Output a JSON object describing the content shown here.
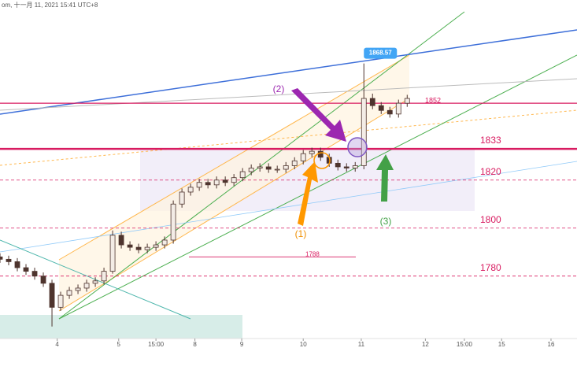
{
  "header": {
    "text": "om, 十一月 11, 2021 15:41 UTC+8"
  },
  "chart_data": {
    "type": "candlestick",
    "x": [
      0,
      1,
      2,
      3,
      4,
      5,
      6,
      7,
      8,
      9,
      10,
      11,
      12,
      13,
      14,
      15,
      16,
      17,
      18,
      19,
      20,
      21,
      22,
      23,
      24,
      25,
      26,
      27,
      28,
      29,
      30,
      31,
      32,
      33,
      34,
      35,
      36,
      37,
      38,
      39,
      40,
      41,
      42,
      43,
      44,
      45,
      46,
      47
    ],
    "open": [
      1788,
      1787,
      1786,
      1783.5,
      1782,
      1780,
      1777,
      1767,
      1772,
      1774,
      1775,
      1777,
      1778,
      1782,
      1797,
      1793,
      1792,
      1791,
      1792,
      1793,
      1795,
      1810,
      1815,
      1817,
      1819,
      1818,
      1820,
      1819,
      1821,
      1823.5,
      1825,
      1825.5,
      1824.5,
      1824.5,
      1826,
      1828,
      1831,
      1832,
      1829.5,
      1827,
      1825.5,
      1825,
      1826,
      1854,
      1851,
      1849,
      1847.5,
      1852
    ],
    "high": [
      1789.5,
      1788.5,
      1787.5,
      1785,
      1783.5,
      1781.5,
      1778.5,
      1773.5,
      1775.5,
      1776.5,
      1778.5,
      1779.5,
      1783.5,
      1799,
      1798.5,
      1794.5,
      1793.5,
      1793.5,
      1794.5,
      1796.5,
      1811.5,
      1816.5,
      1818.5,
      1820.5,
      1820.5,
      1821.5,
      1821.5,
      1822.5,
      1825,
      1826.5,
      1827,
      1827,
      1826,
      1827.5,
      1829.5,
      1832.5,
      1833.5,
      1833.5,
      1831,
      1828.5,
      1827,
      1827.5,
      1868.57,
      1856,
      1852.5,
      1850.5,
      1853.5,
      1855.5
    ],
    "low": [
      1785.5,
      1784.5,
      1782,
      1780.5,
      1778.5,
      1775.5,
      1759,
      1765.5,
      1770.5,
      1772.5,
      1773.5,
      1775.5,
      1776.5,
      1781,
      1791.5,
      1790.5,
      1789.5,
      1789.5,
      1790.5,
      1791.5,
      1793.5,
      1808.5,
      1813.5,
      1815.5,
      1816.5,
      1816.5,
      1817.5,
      1817.5,
      1819.5,
      1822,
      1823.5,
      1823,
      1823,
      1823,
      1824.5,
      1826.5,
      1829.5,
      1828,
      1825.5,
      1824,
      1823.5,
      1823.5,
      1824.5,
      1849.5,
      1847.5,
      1846,
      1846,
      1850.5
    ],
    "close": [
      1787,
      1786,
      1783.5,
      1782,
      1780,
      1777,
      1767,
      1772,
      1774,
      1775,
      1777,
      1778,
      1782,
      1797,
      1793,
      1792,
      1791,
      1792,
      1793,
      1795,
      1810,
      1815,
      1817,
      1819,
      1818,
      1820,
      1819,
      1821,
      1823.5,
      1825,
      1825.5,
      1824.5,
      1824.5,
      1826,
      1828,
      1831,
      1832,
      1829.5,
      1827,
      1825.5,
      1825,
      1826,
      1854,
      1851,
      1849,
      1847.5,
      1852,
      1854
    ],
    "up_color": "#f3ece6",
    "down_color": "#4e342e",
    "xlim": [
      0,
      66.6
    ],
    "xticks": [
      {
        "value": 6.6,
        "label": "4"
      },
      {
        "value": 13.7,
        "label": "5"
      },
      {
        "value": 18,
        "label": "15:00"
      },
      {
        "value": 22.5,
        "label": "8"
      },
      {
        "value": 27.9,
        "label": "9"
      },
      {
        "value": 35,
        "label": "10"
      },
      {
        "value": 41.7,
        "label": "11"
      },
      {
        "value": 49.1,
        "label": "12"
      },
      {
        "value": 53.6,
        "label": "15:00"
      },
      {
        "value": 57.9,
        "label": "15"
      },
      {
        "value": 63.6,
        "label": "16"
      }
    ],
    "ylim": [
      1754,
      1895
    ],
    "levels": [
      1852,
      1833,
      1820,
      1800,
      1780,
      1788
    ],
    "level_color": "#d81b60",
    "annotations": [
      "(1)",
      "(2)",
      "(3)"
    ]
  }
}
